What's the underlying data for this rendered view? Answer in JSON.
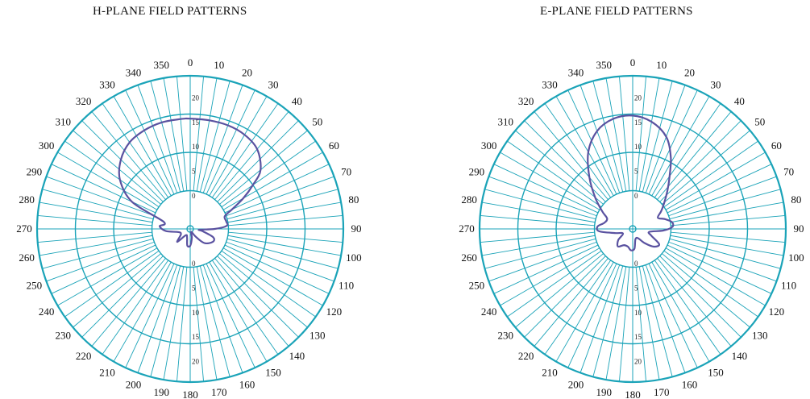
{
  "chart_data": [
    {
      "type": "polar",
      "title": "H-PLANE FIELD PATTERNS",
      "angular_ticks": [
        "0",
        "10",
        "20",
        "30",
        "40",
        "50",
        "60",
        "70",
        "80",
        "90",
        "100",
        "110",
        "120",
        "130",
        "140",
        "150",
        "160",
        "170",
        "180",
        "190",
        "200",
        "210",
        "220",
        "230",
        "240",
        "250",
        "260",
        "270",
        "280",
        "290",
        "300",
        "310",
        "320",
        "330",
        "340",
        "350"
      ],
      "radial_tick_labels": [
        "0",
        "5",
        "10",
        "15",
        "20"
      ],
      "grid_color": "#1aa3b8",
      "series": [
        {
          "color": "#5a52a0",
          "points": [
            {
              "angle": 0,
              "r": 0.72
            },
            {
              "angle": 10,
              "r": 0.72
            },
            {
              "angle": 20,
              "r": 0.72
            },
            {
              "angle": 30,
              "r": 0.71
            },
            {
              "angle": 40,
              "r": 0.68
            },
            {
              "angle": 50,
              "r": 0.6
            },
            {
              "angle": 55,
              "r": 0.5
            },
            {
              "angle": 60,
              "r": 0.4
            },
            {
              "angle": 65,
              "r": 0.3
            },
            {
              "angle": 70,
              "r": 0.24
            },
            {
              "angle": 78,
              "r": 0.24
            },
            {
              "angle": 85,
              "r": 0.24
            },
            {
              "angle": 90,
              "r": 0.16
            },
            {
              "angle": 95,
              "r": 0.06
            },
            {
              "angle": 100,
              "r": 0.08
            },
            {
              "angle": 110,
              "r": 0.16
            },
            {
              "angle": 120,
              "r": 0.17
            },
            {
              "angle": 135,
              "r": 0.13
            },
            {
              "angle": 145,
              "r": 0.06
            },
            {
              "angle": 160,
              "r": 0.02
            },
            {
              "angle": 170,
              "r": 0.06
            },
            {
              "angle": 180,
              "r": 0.11
            },
            {
              "angle": 190,
              "r": 0.11
            },
            {
              "angle": 200,
              "r": 0.06
            },
            {
              "angle": 215,
              "r": 0.05
            },
            {
              "angle": 225,
              "r": 0.12
            },
            {
              "angle": 240,
              "r": 0.07
            },
            {
              "angle": 255,
              "r": 0.08
            },
            {
              "angle": 265,
              "r": 0.16
            },
            {
              "angle": 275,
              "r": 0.2
            },
            {
              "angle": 285,
              "r": 0.18
            },
            {
              "angle": 295,
              "r": 0.42
            },
            {
              "angle": 305,
              "r": 0.56
            },
            {
              "angle": 315,
              "r": 0.64
            },
            {
              "angle": 325,
              "r": 0.69
            },
            {
              "angle": 335,
              "r": 0.71
            },
            {
              "angle": 345,
              "r": 0.72
            },
            {
              "angle": 355,
              "r": 0.72
            }
          ]
        }
      ]
    },
    {
      "type": "polar",
      "title": "E-PLANE FIELD PATTERNS",
      "angular_ticks": [
        "0",
        "10",
        "20",
        "30",
        "40",
        "50",
        "60",
        "70",
        "80",
        "90",
        "100",
        "110",
        "120",
        "130",
        "140",
        "150",
        "160",
        "170",
        "180",
        "190",
        "200",
        "210",
        "220",
        "230",
        "240",
        "250",
        "260",
        "270",
        "280",
        "290",
        "300",
        "310",
        "320",
        "330",
        "340",
        "350"
      ],
      "radial_tick_labels": [
        "0",
        "5",
        "10",
        "15",
        "20"
      ],
      "grid_color": "#1aa3b8",
      "series": [
        {
          "color": "#5a52a0",
          "points": [
            {
              "angle": 0,
              "r": 0.74
            },
            {
              "angle": 10,
              "r": 0.71
            },
            {
              "angle": 20,
              "r": 0.64
            },
            {
              "angle": 28,
              "r": 0.53
            },
            {
              "angle": 35,
              "r": 0.42
            },
            {
              "angle": 42,
              "r": 0.34
            },
            {
              "angle": 50,
              "r": 0.27
            },
            {
              "angle": 58,
              "r": 0.22
            },
            {
              "angle": 66,
              "r": 0.18
            },
            {
              "angle": 73,
              "r": 0.22
            },
            {
              "angle": 80,
              "r": 0.26
            },
            {
              "angle": 87,
              "r": 0.26
            },
            {
              "angle": 93,
              "r": 0.2
            },
            {
              "angle": 100,
              "r": 0.11
            },
            {
              "angle": 110,
              "r": 0.13
            },
            {
              "angle": 120,
              "r": 0.2
            },
            {
              "angle": 130,
              "r": 0.18
            },
            {
              "angle": 140,
              "r": 0.12
            },
            {
              "angle": 150,
              "r": 0.07
            },
            {
              "angle": 165,
              "r": 0.07
            },
            {
              "angle": 175,
              "r": 0.13
            },
            {
              "angle": 185,
              "r": 0.14
            },
            {
              "angle": 195,
              "r": 0.12
            },
            {
              "angle": 208,
              "r": 0.12
            },
            {
              "angle": 220,
              "r": 0.15
            },
            {
              "angle": 232,
              "r": 0.12
            },
            {
              "angle": 245,
              "r": 0.07
            },
            {
              "angle": 257,
              "r": 0.12
            },
            {
              "angle": 266,
              "r": 0.22
            },
            {
              "angle": 274,
              "r": 0.23
            },
            {
              "angle": 282,
              "r": 0.19
            },
            {
              "angle": 292,
              "r": 0.18
            },
            {
              "angle": 300,
              "r": 0.23
            },
            {
              "angle": 310,
              "r": 0.32
            },
            {
              "angle": 320,
              "r": 0.44
            },
            {
              "angle": 330,
              "r": 0.58
            },
            {
              "angle": 340,
              "r": 0.68
            },
            {
              "angle": 350,
              "r": 0.73
            }
          ]
        }
      ]
    }
  ]
}
